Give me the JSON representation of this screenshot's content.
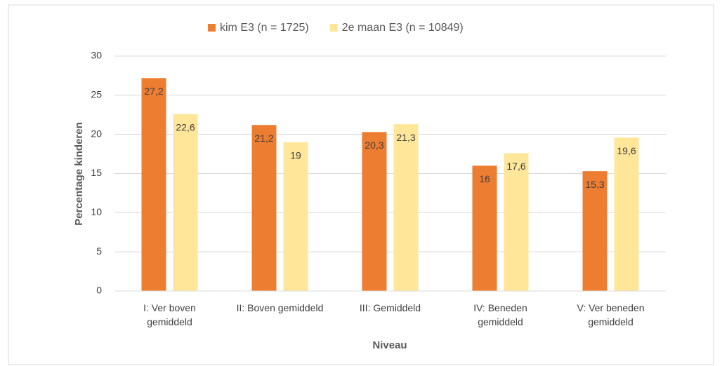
{
  "chart_data": {
    "type": "bar",
    "x_label": "Niveau",
    "y_label": "Percentage kinderen",
    "categories": [
      "I: Ver boven gemiddeld",
      "II: Boven gemiddeld",
      "III: Gemiddeld",
      "IV: Beneden gemiddeld",
      "V: Ver beneden gemiddeld"
    ],
    "series": [
      {
        "name": "kim E3 (n = 1725)",
        "color": "#ed7d31",
        "values": [
          27.2,
          21.2,
          20.3,
          16,
          15.3
        ],
        "value_labels": [
          "27,2",
          "21,2",
          "20,3",
          "16",
          "15,3"
        ]
      },
      {
        "name": "2e maan E3 (n = 10849)",
        "color": "#ffe699",
        "values": [
          22.6,
          19,
          21.3,
          17.6,
          19.6
        ],
        "value_labels": [
          "22,6",
          "19",
          "21,3",
          "17,6",
          "19,6"
        ]
      }
    ],
    "ylim": [
      0,
      30
    ],
    "yticks": [
      0,
      5,
      10,
      15,
      20,
      25,
      30
    ],
    "grid": true,
    "legend": "top"
  }
}
